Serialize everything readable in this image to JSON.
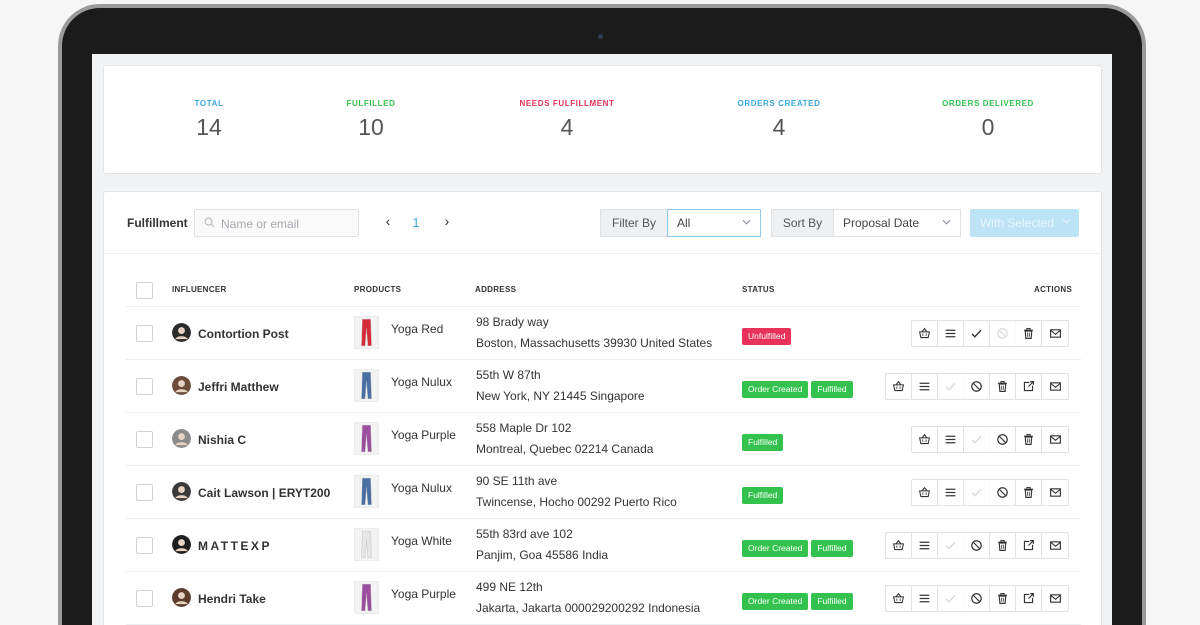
{
  "stats": [
    {
      "label": "TOTAL",
      "value": "14",
      "color": "#3aa7e0"
    },
    {
      "label": "FULFILLED",
      "value": "10",
      "color": "#33c24d"
    },
    {
      "label": "NEEDS FULFILLMENT",
      "value": "4",
      "color": "#e8325a"
    },
    {
      "label": "ORDERS CREATED",
      "value": "4",
      "color": "#3aa7e0"
    },
    {
      "label": "ORDERS DELIVERED",
      "value": "0",
      "color": "#33c24d"
    }
  ],
  "toolbar": {
    "title": "Fulfillment",
    "search_placeholder": "Name or email",
    "prev": "‹",
    "page": "1",
    "next": "›",
    "filter_label": "Filter By",
    "filter_value": "All",
    "sort_label": "Sort By",
    "sort_value": "Proposal Date",
    "with_selected": "With Selected"
  },
  "table": {
    "headers": {
      "influencer": "INFLUENCER",
      "products": "PRODUCTS",
      "address": "ADDRESS",
      "status": "STATUS",
      "actions": "ACTIONS"
    },
    "rows": [
      {
        "name": "Contortion Post",
        "product": "Yoga Red",
        "product_color": "#d42a3a",
        "addr1": "98 Brady way",
        "addr2": "Boston, Massachusetts 39930 United States",
        "statuses": [
          {
            "text": "Unfulfilled",
            "color": "red"
          }
        ],
        "actions": [
          "basket-icon",
          "list-icon",
          "check-icon",
          "cancel-icon",
          "trash-icon",
          "mail-icon"
        ],
        "disabled": [
          "cancel-icon"
        ]
      },
      {
        "name": "Jeffri Matthew",
        "product": "Yoga Nulux",
        "product_color": "#4a6fa3",
        "addr1": "55th W 87th",
        "addr2": "New York, NY 21445 Singapore",
        "statuses": [
          {
            "text": "Order Created",
            "color": "green"
          },
          {
            "text": "Fulfilled",
            "color": "green"
          }
        ],
        "actions": [
          "basket-icon",
          "list-icon",
          "check-icon",
          "cancel-icon",
          "trash-icon",
          "external-link-icon",
          "mail-icon"
        ],
        "disabled": [
          "check-icon"
        ]
      },
      {
        "name": "Nishia C",
        "product": "Yoga Purple",
        "product_color": "#9b4f9e",
        "addr1": "558 Maple Dr 102",
        "addr2": "Montreal, Quebec 02214 Canada",
        "statuses": [
          {
            "text": "Fulfilled",
            "color": "green"
          }
        ],
        "actions": [
          "basket-icon",
          "list-icon",
          "check-icon",
          "cancel-icon",
          "trash-icon",
          "mail-icon"
        ],
        "disabled": [
          "check-icon"
        ]
      },
      {
        "name": "Cait Lawson | ERYT200",
        "product": "Yoga Nulux",
        "product_color": "#4a6fa3",
        "addr1": "90 SE 11th ave",
        "addr2": "Twincense, Hocho 00292 Puerto Rico",
        "statuses": [
          {
            "text": "Fulfilled",
            "color": "green"
          }
        ],
        "actions": [
          "basket-icon",
          "list-icon",
          "check-icon",
          "cancel-icon",
          "trash-icon",
          "mail-icon"
        ],
        "disabled": [
          "check-icon"
        ]
      },
      {
        "name": "MATTEXP",
        "product": "Yoga White",
        "product_color": "#e6e6e6",
        "addr1": "55th 83rd ave 102",
        "addr2": "Panjim, Goa 45586 India",
        "statuses": [
          {
            "text": "Order Created",
            "color": "green"
          },
          {
            "text": "Fulfilled",
            "color": "green"
          }
        ],
        "actions": [
          "basket-icon",
          "list-icon",
          "check-icon",
          "cancel-icon",
          "trash-icon",
          "external-link-icon",
          "mail-icon"
        ],
        "disabled": [
          "check-icon"
        ]
      },
      {
        "name": "Hendri Take",
        "product": "Yoga Purple",
        "product_color": "#9b4f9e",
        "addr1": "499 NE 12th",
        "addr2": "Jakarta, Jakarta 000029200292 Indonesia",
        "statuses": [
          {
            "text": "Order Created",
            "color": "green"
          },
          {
            "text": "Fulfilled",
            "color": "green"
          }
        ],
        "actions": [
          "basket-icon",
          "list-icon",
          "check-icon",
          "cancel-icon",
          "trash-icon",
          "external-link-icon",
          "mail-icon"
        ],
        "disabled": [
          "check-icon"
        ]
      }
    ]
  }
}
